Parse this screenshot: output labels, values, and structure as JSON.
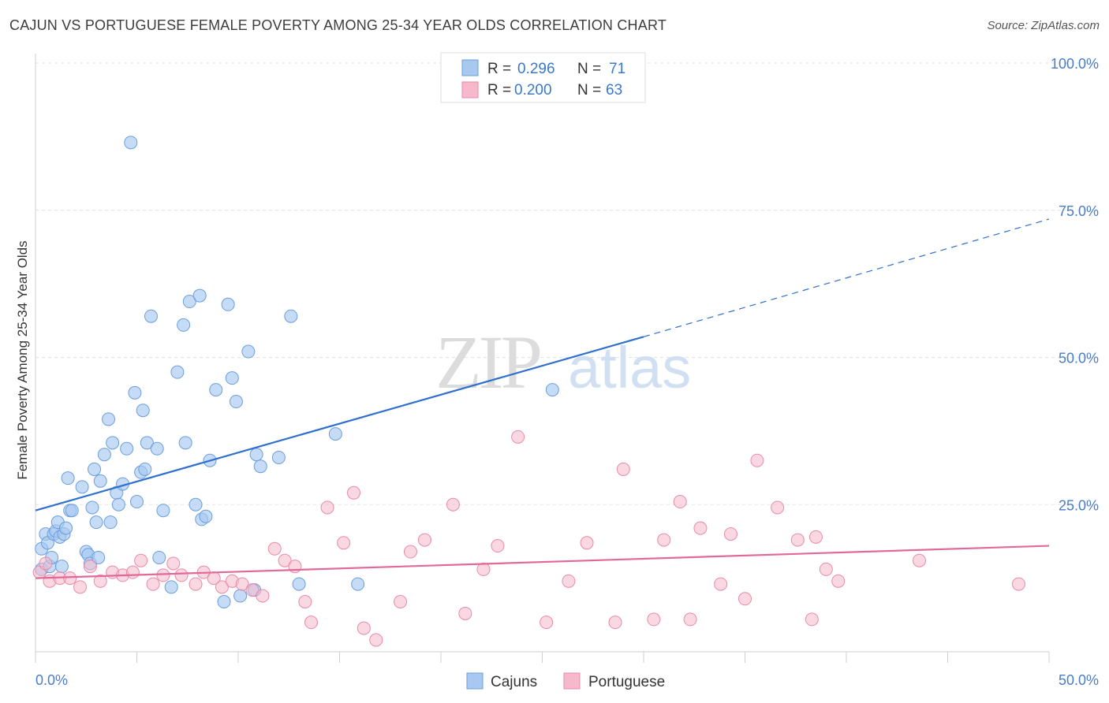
{
  "title": "CAJUN VS PORTUGUESE FEMALE POVERTY AMONG 25-34 YEAR OLDS CORRELATION CHART",
  "source": "Source: ZipAtlas.com",
  "watermark": {
    "zip": "ZIP",
    "atlas": "atlas"
  },
  "colors": {
    "cajun_fill": "#a8c8f0",
    "cajun_stroke": "#6a9fdc",
    "cajun_line": "#2f6fce",
    "portuguese_fill": "#f6b8cb",
    "portuguese_stroke": "#e98aa8",
    "portuguese_line": "#e0699a",
    "tick_label": "#4a7cc7"
  },
  "legend": {
    "rows": [
      {
        "r_label": "R =",
        "r_value": "0.296",
        "n_label": "N =",
        "n_value": "71"
      },
      {
        "r_label": "R =",
        "r_value": "0.200",
        "n_label": "N =",
        "n_value": "63"
      }
    ]
  },
  "bottom_legend": [
    "Cajuns",
    "Portuguese"
  ],
  "chart_data": {
    "type": "scatter",
    "title": "CAJUN VS PORTUGUESE FEMALE POVERTY AMONG 25-34 YEAR OLDS CORRELATION CHART",
    "xlabel": "",
    "ylabel": "Female Poverty Among 25-34 Year Olds",
    "xlim": [
      0,
      50
    ],
    "ylim": [
      0,
      100
    ],
    "x_tick_labels": [
      "0.0%",
      "50.0%"
    ],
    "y_tick_labels": [
      "25.0%",
      "50.0%",
      "75.0%",
      "100.0%"
    ],
    "y_tick_values": [
      25,
      50,
      75,
      100
    ],
    "grid": true,
    "legend_position": "top-center",
    "series": [
      {
        "name": "Cajuns",
        "R": 0.296,
        "N": 71,
        "trend": {
          "x0": 0,
          "y0": 24.0,
          "x1": 30,
          "y1": 53.5,
          "dashed_to_x": 50,
          "dashed_to_y": 73.5
        },
        "points": [
          [
            0.3,
            14.0
          ],
          [
            0.3,
            17.5
          ],
          [
            0.5,
            20.0
          ],
          [
            0.6,
            18.5
          ],
          [
            0.7,
            14.5
          ],
          [
            0.8,
            16.0
          ],
          [
            0.9,
            20.0
          ],
          [
            1.0,
            20.5
          ],
          [
            1.1,
            22.0
          ],
          [
            1.2,
            19.5
          ],
          [
            1.3,
            14.5
          ],
          [
            1.4,
            20.0
          ],
          [
            1.5,
            21.0
          ],
          [
            1.7,
            24.0
          ],
          [
            1.8,
            24.0
          ],
          [
            1.6,
            29.5
          ],
          [
            2.3,
            28.0
          ],
          [
            2.5,
            17.0
          ],
          [
            2.6,
            16.5
          ],
          [
            2.7,
            15.0
          ],
          [
            2.8,
            24.5
          ],
          [
            2.9,
            31.0
          ],
          [
            3.0,
            22.0
          ],
          [
            3.1,
            16.0
          ],
          [
            3.2,
            29.0
          ],
          [
            3.4,
            33.5
          ],
          [
            3.6,
            39.5
          ],
          [
            3.7,
            22.0
          ],
          [
            3.8,
            35.5
          ],
          [
            4.0,
            27.0
          ],
          [
            4.1,
            25.0
          ],
          [
            4.3,
            28.5
          ],
          [
            4.5,
            34.5
          ],
          [
            4.7,
            86.5
          ],
          [
            4.9,
            44.0
          ],
          [
            5.0,
            25.5
          ],
          [
            5.2,
            30.5
          ],
          [
            5.3,
            41.0
          ],
          [
            5.4,
            31.0
          ],
          [
            5.5,
            35.5
          ],
          [
            5.7,
            57.0
          ],
          [
            6.0,
            34.5
          ],
          [
            6.1,
            16.0
          ],
          [
            6.3,
            24.0
          ],
          [
            6.7,
            11.0
          ],
          [
            7.0,
            47.5
          ],
          [
            7.3,
            55.5
          ],
          [
            7.4,
            35.5
          ],
          [
            7.6,
            59.5
          ],
          [
            7.9,
            25.0
          ],
          [
            8.1,
            60.5
          ],
          [
            8.2,
            22.5
          ],
          [
            8.4,
            23.0
          ],
          [
            8.6,
            32.5
          ],
          [
            8.9,
            44.5
          ],
          [
            9.3,
            8.5
          ],
          [
            9.5,
            59.0
          ],
          [
            9.7,
            46.5
          ],
          [
            9.9,
            42.5
          ],
          [
            10.1,
            9.5
          ],
          [
            10.5,
            51.0
          ],
          [
            10.8,
            10.5
          ],
          [
            10.9,
            33.5
          ],
          [
            11.1,
            31.5
          ],
          [
            12.0,
            33.0
          ],
          [
            12.6,
            57.0
          ],
          [
            13.0,
            11.5
          ],
          [
            14.8,
            37.0
          ],
          [
            15.9,
            11.5
          ],
          [
            25.5,
            44.5
          ]
        ]
      },
      {
        "name": "Portuguese",
        "R": 0.2,
        "N": 63,
        "trend": {
          "x0": 0,
          "y0": 12.5,
          "x1": 50,
          "y1": 18.0
        },
        "points": [
          [
            0.2,
            13.5
          ],
          [
            0.5,
            15.0
          ],
          [
            0.7,
            12.0
          ],
          [
            1.2,
            12.5
          ],
          [
            1.7,
            12.5
          ],
          [
            2.2,
            11.0
          ],
          [
            2.7,
            14.5
          ],
          [
            3.2,
            12.0
          ],
          [
            3.8,
            13.5
          ],
          [
            4.3,
            13.0
          ],
          [
            4.8,
            13.5
          ],
          [
            5.2,
            15.5
          ],
          [
            5.8,
            11.5
          ],
          [
            6.3,
            13.0
          ],
          [
            6.8,
            15.0
          ],
          [
            7.2,
            13.0
          ],
          [
            7.9,
            11.5
          ],
          [
            8.3,
            13.5
          ],
          [
            8.8,
            12.5
          ],
          [
            9.2,
            11.0
          ],
          [
            9.7,
            12.0
          ],
          [
            10.2,
            11.5
          ],
          [
            10.7,
            10.5
          ],
          [
            11.2,
            9.5
          ],
          [
            11.8,
            17.5
          ],
          [
            12.3,
            15.5
          ],
          [
            12.8,
            14.5
          ],
          [
            13.3,
            8.5
          ],
          [
            13.6,
            5.0
          ],
          [
            14.4,
            24.5
          ],
          [
            15.2,
            18.5
          ],
          [
            15.7,
            27.0
          ],
          [
            16.2,
            4.0
          ],
          [
            16.8,
            2.0
          ],
          [
            18.0,
            8.5
          ],
          [
            18.5,
            17.0
          ],
          [
            19.2,
            19.0
          ],
          [
            20.6,
            25.0
          ],
          [
            21.2,
            6.5
          ],
          [
            22.1,
            14.0
          ],
          [
            22.8,
            18.0
          ],
          [
            23.8,
            36.5
          ],
          [
            25.2,
            5.0
          ],
          [
            26.3,
            12.0
          ],
          [
            27.2,
            18.5
          ],
          [
            28.6,
            5.0
          ],
          [
            29.0,
            31.0
          ],
          [
            30.5,
            5.5
          ],
          [
            31.0,
            19.0
          ],
          [
            31.8,
            25.5
          ],
          [
            32.3,
            5.5
          ],
          [
            32.8,
            21.0
          ],
          [
            33.8,
            11.5
          ],
          [
            34.3,
            20.0
          ],
          [
            35.0,
            9.0
          ],
          [
            35.6,
            32.5
          ],
          [
            36.6,
            24.5
          ],
          [
            37.6,
            19.0
          ],
          [
            38.3,
            5.5
          ],
          [
            38.5,
            19.5
          ],
          [
            39.0,
            14.0
          ],
          [
            39.6,
            12.0
          ],
          [
            43.6,
            15.5
          ],
          [
            48.5,
            11.5
          ]
        ]
      }
    ]
  }
}
